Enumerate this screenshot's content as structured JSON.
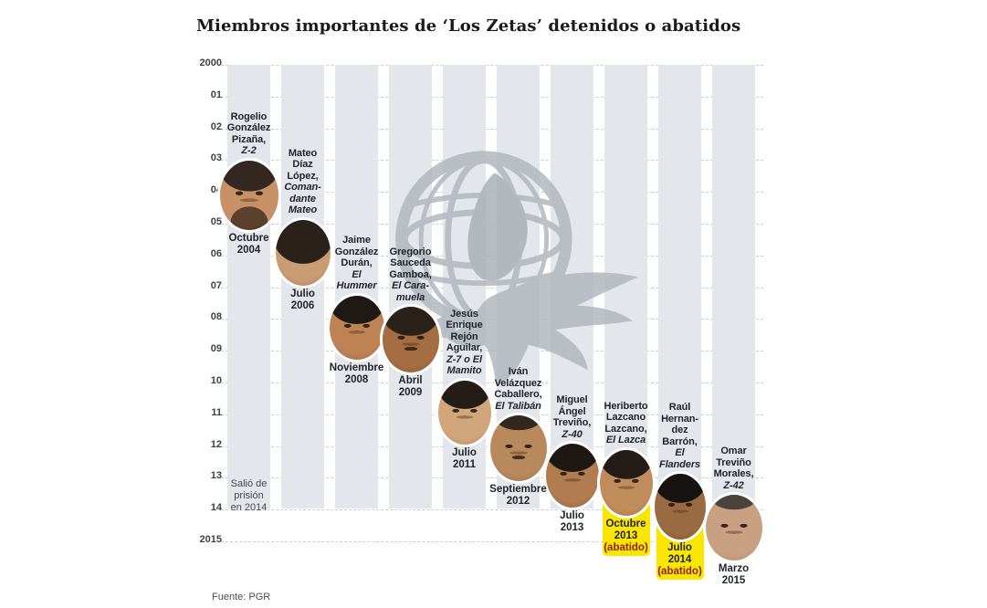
{
  "title": "Miembros importantes de ‘Los Zetas’ detenidos o abatidos",
  "source": "Fuente: PGR",
  "colors": {
    "stripe": "#e3e7eb",
    "highlight_yellow": "#fae600",
    "gridline": "#c9ced3",
    "name_text": "#20242b",
    "abatido_text": "#8b1f10",
    "watermark_gray": "#b2b8be"
  },
  "watermark_icon": "globe-eagle-logo",
  "chart_data": {
    "type": "scatter",
    "title": "Miembros importantes de ‘Los Zetas’ detenidos o abatidos",
    "ylabel": "",
    "xlabel": "",
    "y_axis": {
      "range": [
        2000,
        2015
      ],
      "tick_labels": [
        "2000",
        "01",
        "02",
        "03",
        "04",
        "05",
        "06",
        "07",
        "08",
        "09",
        "10",
        "11",
        "12",
        "13",
        "14",
        "2015"
      ]
    },
    "legend": "none",
    "grid": "horizontal-dashed",
    "points": [
      {
        "column": 1,
        "name": "Rogelio González Pizaña,",
        "alias": "Z-2",
        "name_lines": [
          "Rogelio",
          "González",
          "Pizaña,"
        ],
        "alias_lines": [
          "Z-2"
        ],
        "date": "Octubre 2004",
        "date_lines": [
          "Octubre",
          "2004"
        ],
        "year_decimal": 2004.79,
        "status": null,
        "highlight": false,
        "note": "Salió de prisión en 2014",
        "note_lines": [
          "Salió de",
          "prisión",
          "en 2014"
        ],
        "note_year": 13.0,
        "photo": {
          "skin": "#c89067",
          "skin_dark": "#8f5c3a",
          "hair": "#342620",
          "beard": true,
          "mustache": false,
          "big_hair": false,
          "bald": false,
          "w": 64,
          "h": 76
        }
      },
      {
        "column": 2,
        "name": "Mateo Díaz López,",
        "alias": "Comandante Mateo",
        "name_lines": [
          "Mateo",
          "Díaz",
          "López,"
        ],
        "alias_lines": [
          "Coman-",
          "dante",
          "Mateo"
        ],
        "date": "Julio 2006",
        "date_lines": [
          "Julio",
          "2006"
        ],
        "year_decimal": 2006.54,
        "status": null,
        "highlight": false,
        "photo": {
          "skin": "#c99c74",
          "skin_dark": "#90663f",
          "hair": "#2b211b",
          "beard": false,
          "mustache": false,
          "big_hair": true,
          "bald": false,
          "w": 60,
          "h": 72
        }
      },
      {
        "column": 3,
        "name": "Jaime González Durán,",
        "alias": "El Hummer",
        "name_lines": [
          "Jaime",
          "González",
          "Durán,"
        ],
        "alias_lines": [
          "El",
          "Hummer"
        ],
        "date": "Noviembre 2008",
        "date_lines": [
          "Noviembre",
          "2008"
        ],
        "year_decimal": 2008.87,
        "status": null,
        "highlight": false,
        "photo": {
          "skin": "#bd8355",
          "skin_dark": "#7f5230",
          "hair": "#1f1914",
          "beard": false,
          "mustache": false,
          "big_hair": false,
          "bald": false,
          "w": 60,
          "h": 70
        }
      },
      {
        "column": 4,
        "name": "Gregorio Sauceda Gamboa,",
        "alias": "El Caramuela",
        "name_lines": [
          "Gregorio",
          "Sauceda",
          "Gamboa,"
        ],
        "alias_lines": [
          "El Cara-",
          "muela"
        ],
        "date": "Abril 2009",
        "date_lines": [
          "Abril",
          "2009"
        ],
        "year_decimal": 2009.29,
        "status": null,
        "highlight": false,
        "photo": {
          "skin": "#a56d42",
          "skin_dark": "#6f4225",
          "hair": "#2a211b",
          "beard": false,
          "mustache": true,
          "big_hair": false,
          "bald": false,
          "w": 62,
          "h": 72
        }
      },
      {
        "column": 5,
        "name": "Jesús Enrique Rejón Aguilar,",
        "alias": "Z-7 o El Mamito",
        "name_lines": [
          "Jesús",
          "Enrique",
          "Rejón",
          "Aguilar,"
        ],
        "alias_lines": [
          "Z-7 o El",
          "Mamito"
        ],
        "date": "Julio 2011",
        "date_lines": [
          "Julio",
          "2011"
        ],
        "year_decimal": 2011.54,
        "status": null,
        "highlight": false,
        "photo": {
          "skin": "#d0a67a",
          "skin_dark": "#97693e",
          "hair": "#241c17",
          "beard": false,
          "mustache": false,
          "big_hair": false,
          "bald": false,
          "w": 58,
          "h": 70
        }
      },
      {
        "column": 6,
        "name": "Iván Velázquez Caballero,",
        "alias": "El Talibán",
        "name_lines": [
          "Iván",
          "Velázquez",
          "Caballero,"
        ],
        "alias_lines": [
          "El Talibán"
        ],
        "date": "Septiembre 2012",
        "date_lines": [
          "Septiembre",
          "2012"
        ],
        "year_decimal": 2012.71,
        "status": null,
        "highlight": false,
        "photo": {
          "skin": "#b8895c",
          "skin_dark": "#7d5432",
          "hair": "#33281f",
          "beard": false,
          "mustache": true,
          "big_hair": false,
          "bald": true,
          "w": 62,
          "h": 72
        }
      },
      {
        "column": 7,
        "name": "Miguel Ángel Treviño,",
        "alias": "Z-40",
        "name_lines": [
          "Miguel",
          "Ángel",
          "Treviño,"
        ],
        "alias_lines": [
          "Z-40"
        ],
        "date": "Julio 2013",
        "date_lines": [
          "Julio",
          "2013"
        ],
        "year_decimal": 2013.54,
        "status": null,
        "highlight": false,
        "photo": {
          "skin": "#b07c50",
          "skin_dark": "#74482a",
          "hair": "#1e1813",
          "beard": false,
          "mustache": false,
          "big_hair": false,
          "bald": false,
          "w": 58,
          "h": 70
        }
      },
      {
        "column": 8,
        "name": "Heriberto Lazcano Lazcano,",
        "alias": "El Lazca",
        "name_lines": [
          "Heriberto",
          "Lazcano",
          "Lazcano,"
        ],
        "alias_lines": [
          "El Lazca"
        ],
        "date": "Octubre 2013",
        "date_lines": [
          "Octubre",
          "2013"
        ],
        "year_decimal": 2013.79,
        "status": "(abatido)",
        "highlight": true,
        "photo": {
          "skin": "#c08c5c",
          "skin_dark": "#855935",
          "hair": "#241c16",
          "beard": false,
          "mustache": false,
          "big_hair": false,
          "bald": false,
          "w": 58,
          "h": 72
        }
      },
      {
        "column": 9,
        "name": "Raúl Hernandez Barrón,",
        "alias": "El Flanders",
        "name_lines": [
          "Raúl",
          "Hernan-",
          "dez",
          "Barrón,"
        ],
        "alias_lines": [
          "El",
          "Flanders"
        ],
        "date": "Julio 2014",
        "date_lines": [
          "Julio",
          "2014"
        ],
        "year_decimal": 2014.54,
        "status": "(abatido)",
        "highlight": true,
        "photo": {
          "skin": "#9a6a42",
          "skin_dark": "#5f3c21",
          "hair": "#171310",
          "beard": false,
          "mustache": false,
          "big_hair": false,
          "bald": false,
          "w": 56,
          "h": 72
        }
      },
      {
        "column": 10,
        "name": "Omar Treviño Morales,",
        "alias": "Z-42",
        "name_lines": [
          "Omar",
          "Treviño",
          "Morales,"
        ],
        "alias_lines": [
          "Z-42"
        ],
        "date": "Marzo 2015",
        "date_lines": [
          "Marzo",
          "2015"
        ],
        "year_decimal": 2015.21,
        "status": null,
        "highlight": false,
        "photo": {
          "skin": "#c9a182",
          "skin_dark": "#8e6a4c",
          "hair": "#4a423c",
          "beard": false,
          "mustache": false,
          "big_hair": false,
          "bald": true,
          "w": 62,
          "h": 72
        }
      }
    ]
  }
}
